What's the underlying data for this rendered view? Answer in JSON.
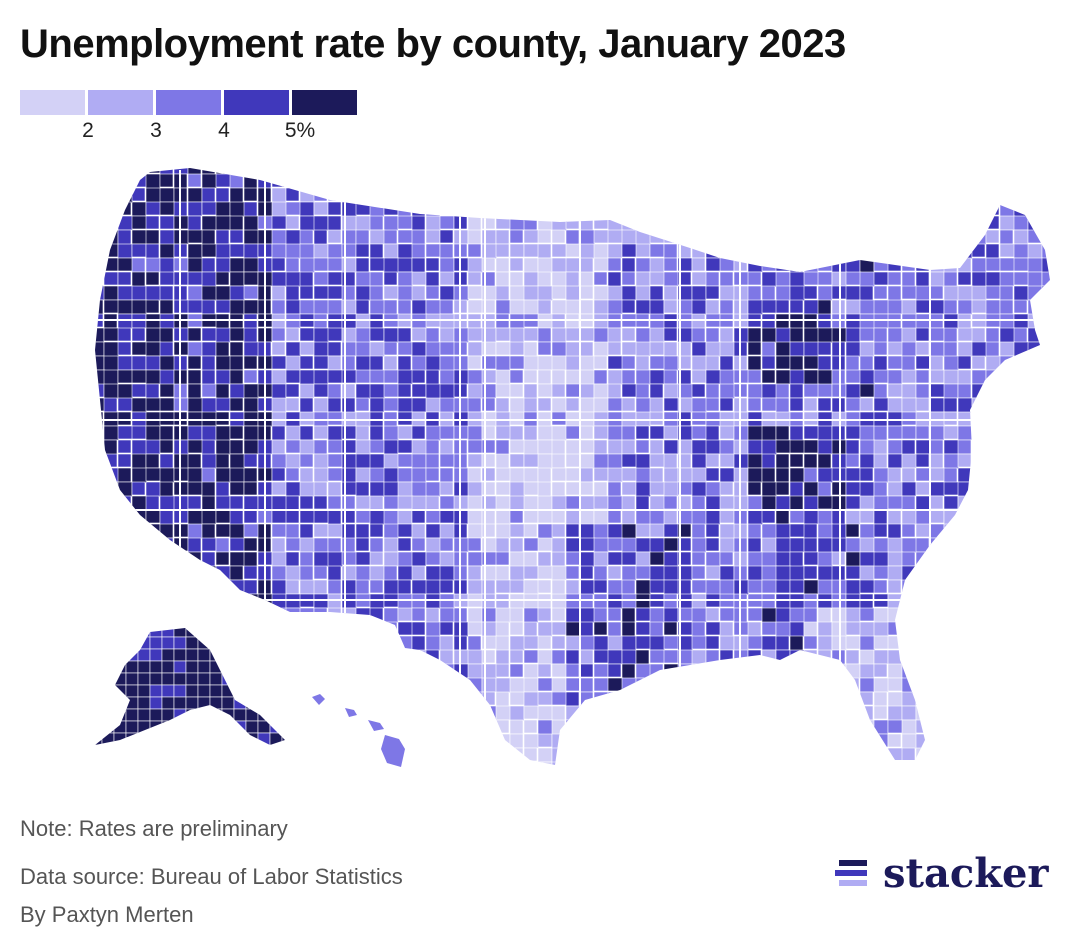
{
  "title": "Unemployment rate by county, January 2023",
  "legend": {
    "colors": [
      "#d3d1f6",
      "#b0acf3",
      "#7e77e6",
      "#4038bb",
      "#1c1a5a"
    ],
    "ticks": [
      "2",
      "3",
      "4",
      "5%"
    ]
  },
  "notes": {
    "note": "Note: Rates are preliminary",
    "source": "Data source: Bureau of Labor Statistics",
    "byline": "By Paxtyn Merten"
  },
  "brand": {
    "name": "stacker",
    "icon": "stacker-logo-icon"
  },
  "map": {
    "type": "choropleth",
    "region": "United States counties"
  }
}
